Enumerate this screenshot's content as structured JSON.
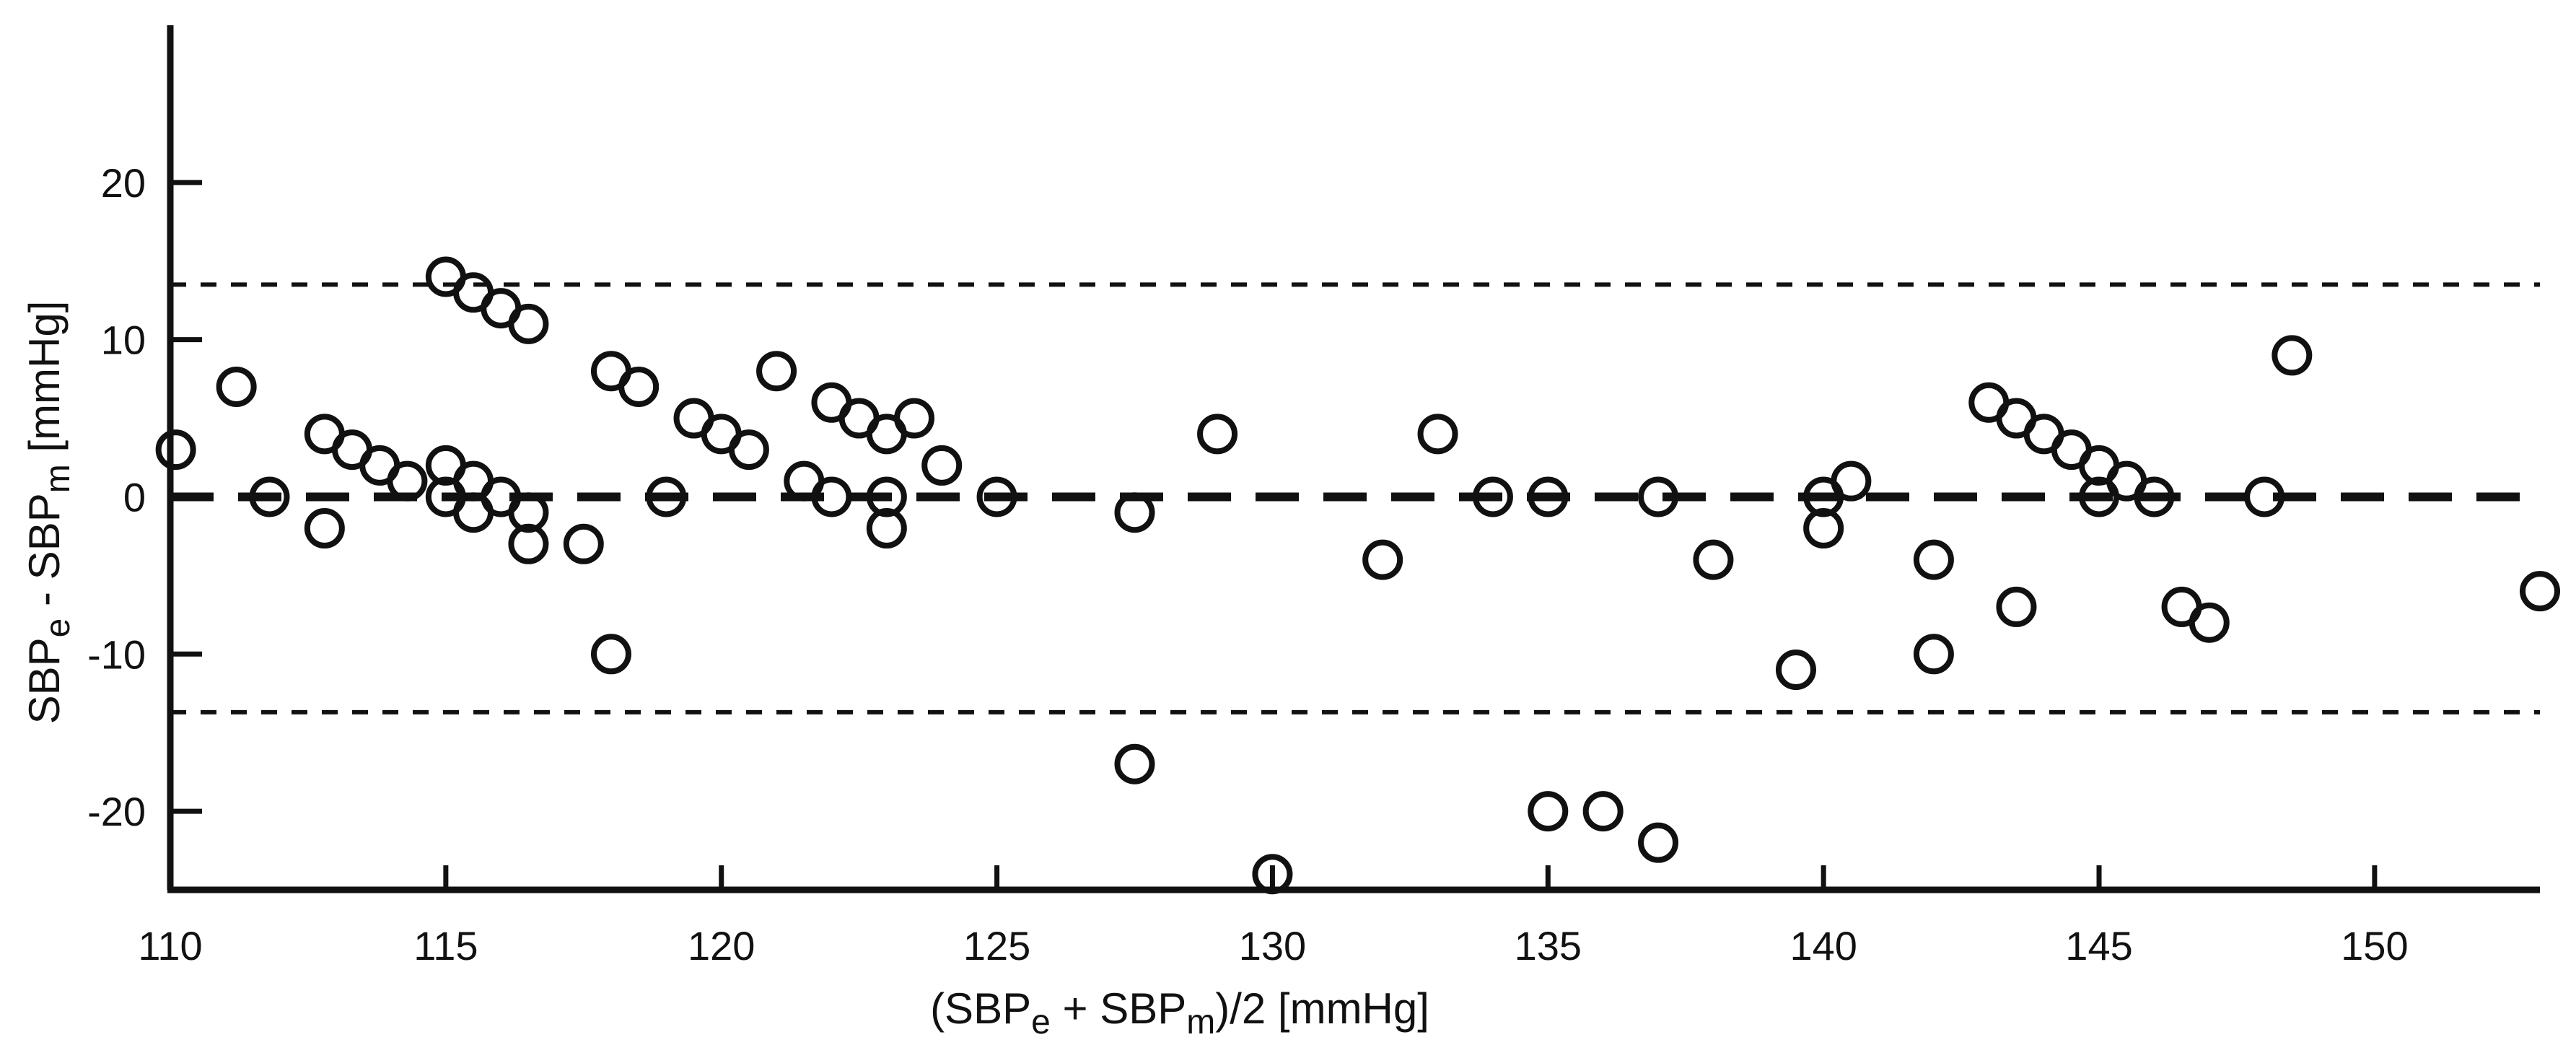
{
  "chart_data": {
    "type": "scatter",
    "title": "",
    "xlabel": {
      "main": "(SBP",
      "sub1": "e",
      "mid": " + SBP",
      "sub2": "m",
      "tail": ")/2   [mmHg]"
    },
    "ylabel": {
      "main": "SBP",
      "sub1": "e",
      "mid": " - SBP",
      "sub2": "m",
      "tail": " [mmHg]"
    },
    "xlim": [
      110,
      153
    ],
    "ylim": [
      -25,
      30
    ],
    "xticks": [
      110,
      115,
      120,
      125,
      130,
      135,
      140,
      145,
      150
    ],
    "yticks": [
      -20,
      -10,
      0,
      10,
      20
    ],
    "xtick_labels": [
      "110",
      "115",
      "120",
      "125",
      "130",
      "135",
      "140",
      "145",
      "150"
    ],
    "ytick_labels": [
      "-20",
      "-10",
      "0",
      "10",
      "20"
    ],
    "grid": false,
    "reference_lines": [
      {
        "name": "mean",
        "y": 0,
        "style": "long-dash"
      },
      {
        "name": "upper-limit",
        "y": 13.5,
        "style": "short-dash"
      },
      {
        "name": "lower-limit",
        "y": -13.7,
        "style": "short-dash"
      }
    ],
    "series": [
      {
        "marker": "open-circle",
        "points": [
          [
            110.1,
            3
          ],
          [
            111.2,
            7
          ],
          [
            111.8,
            0
          ],
          [
            112.8,
            4
          ],
          [
            112.8,
            -2
          ],
          [
            113.3,
            3
          ],
          [
            113.8,
            2
          ],
          [
            114.3,
            1
          ],
          [
            115,
            14
          ],
          [
            115,
            2
          ],
          [
            115,
            0
          ],
          [
            115.5,
            13
          ],
          [
            115.5,
            1
          ],
          [
            115.5,
            -1
          ],
          [
            116,
            12
          ],
          [
            116,
            0
          ],
          [
            116.5,
            11
          ],
          [
            116.5,
            -1
          ],
          [
            116.5,
            -3
          ],
          [
            117.5,
            -3
          ],
          [
            118,
            8
          ],
          [
            118,
            -10
          ],
          [
            118.5,
            7
          ],
          [
            119,
            0
          ],
          [
            119.5,
            5
          ],
          [
            120,
            4
          ],
          [
            120.5,
            3
          ],
          [
            121,
            8
          ],
          [
            121.5,
            1
          ],
          [
            122,
            6
          ],
          [
            122,
            0
          ],
          [
            122.5,
            5
          ],
          [
            123,
            4
          ],
          [
            123,
            0
          ],
          [
            123,
            -2
          ],
          [
            123.5,
            5
          ],
          [
            124,
            2
          ],
          [
            125,
            0
          ],
          [
            127.5,
            -1
          ],
          [
            127.5,
            -17
          ],
          [
            129,
            4
          ],
          [
            130,
            -24
          ],
          [
            132,
            -4
          ],
          [
            133,
            4
          ],
          [
            134,
            0
          ],
          [
            135,
            0
          ],
          [
            135,
            -20
          ],
          [
            136,
            -20
          ],
          [
            137,
            0
          ],
          [
            137,
            -22
          ],
          [
            138,
            -4
          ],
          [
            139.5,
            -11
          ],
          [
            140,
            0
          ],
          [
            140,
            -2
          ],
          [
            140.5,
            1
          ],
          [
            142,
            -4
          ],
          [
            142,
            -10
          ],
          [
            143,
            6
          ],
          [
            143.5,
            5
          ],
          [
            143.5,
            -7
          ],
          [
            144,
            4
          ],
          [
            144.5,
            3
          ],
          [
            145,
            2
          ],
          [
            145,
            0
          ],
          [
            145.5,
            1
          ],
          [
            146,
            0
          ],
          [
            146.5,
            -7
          ],
          [
            147,
            -8
          ],
          [
            148,
            0
          ],
          [
            148.5,
            9
          ],
          [
            153,
            -6
          ]
        ]
      }
    ]
  }
}
